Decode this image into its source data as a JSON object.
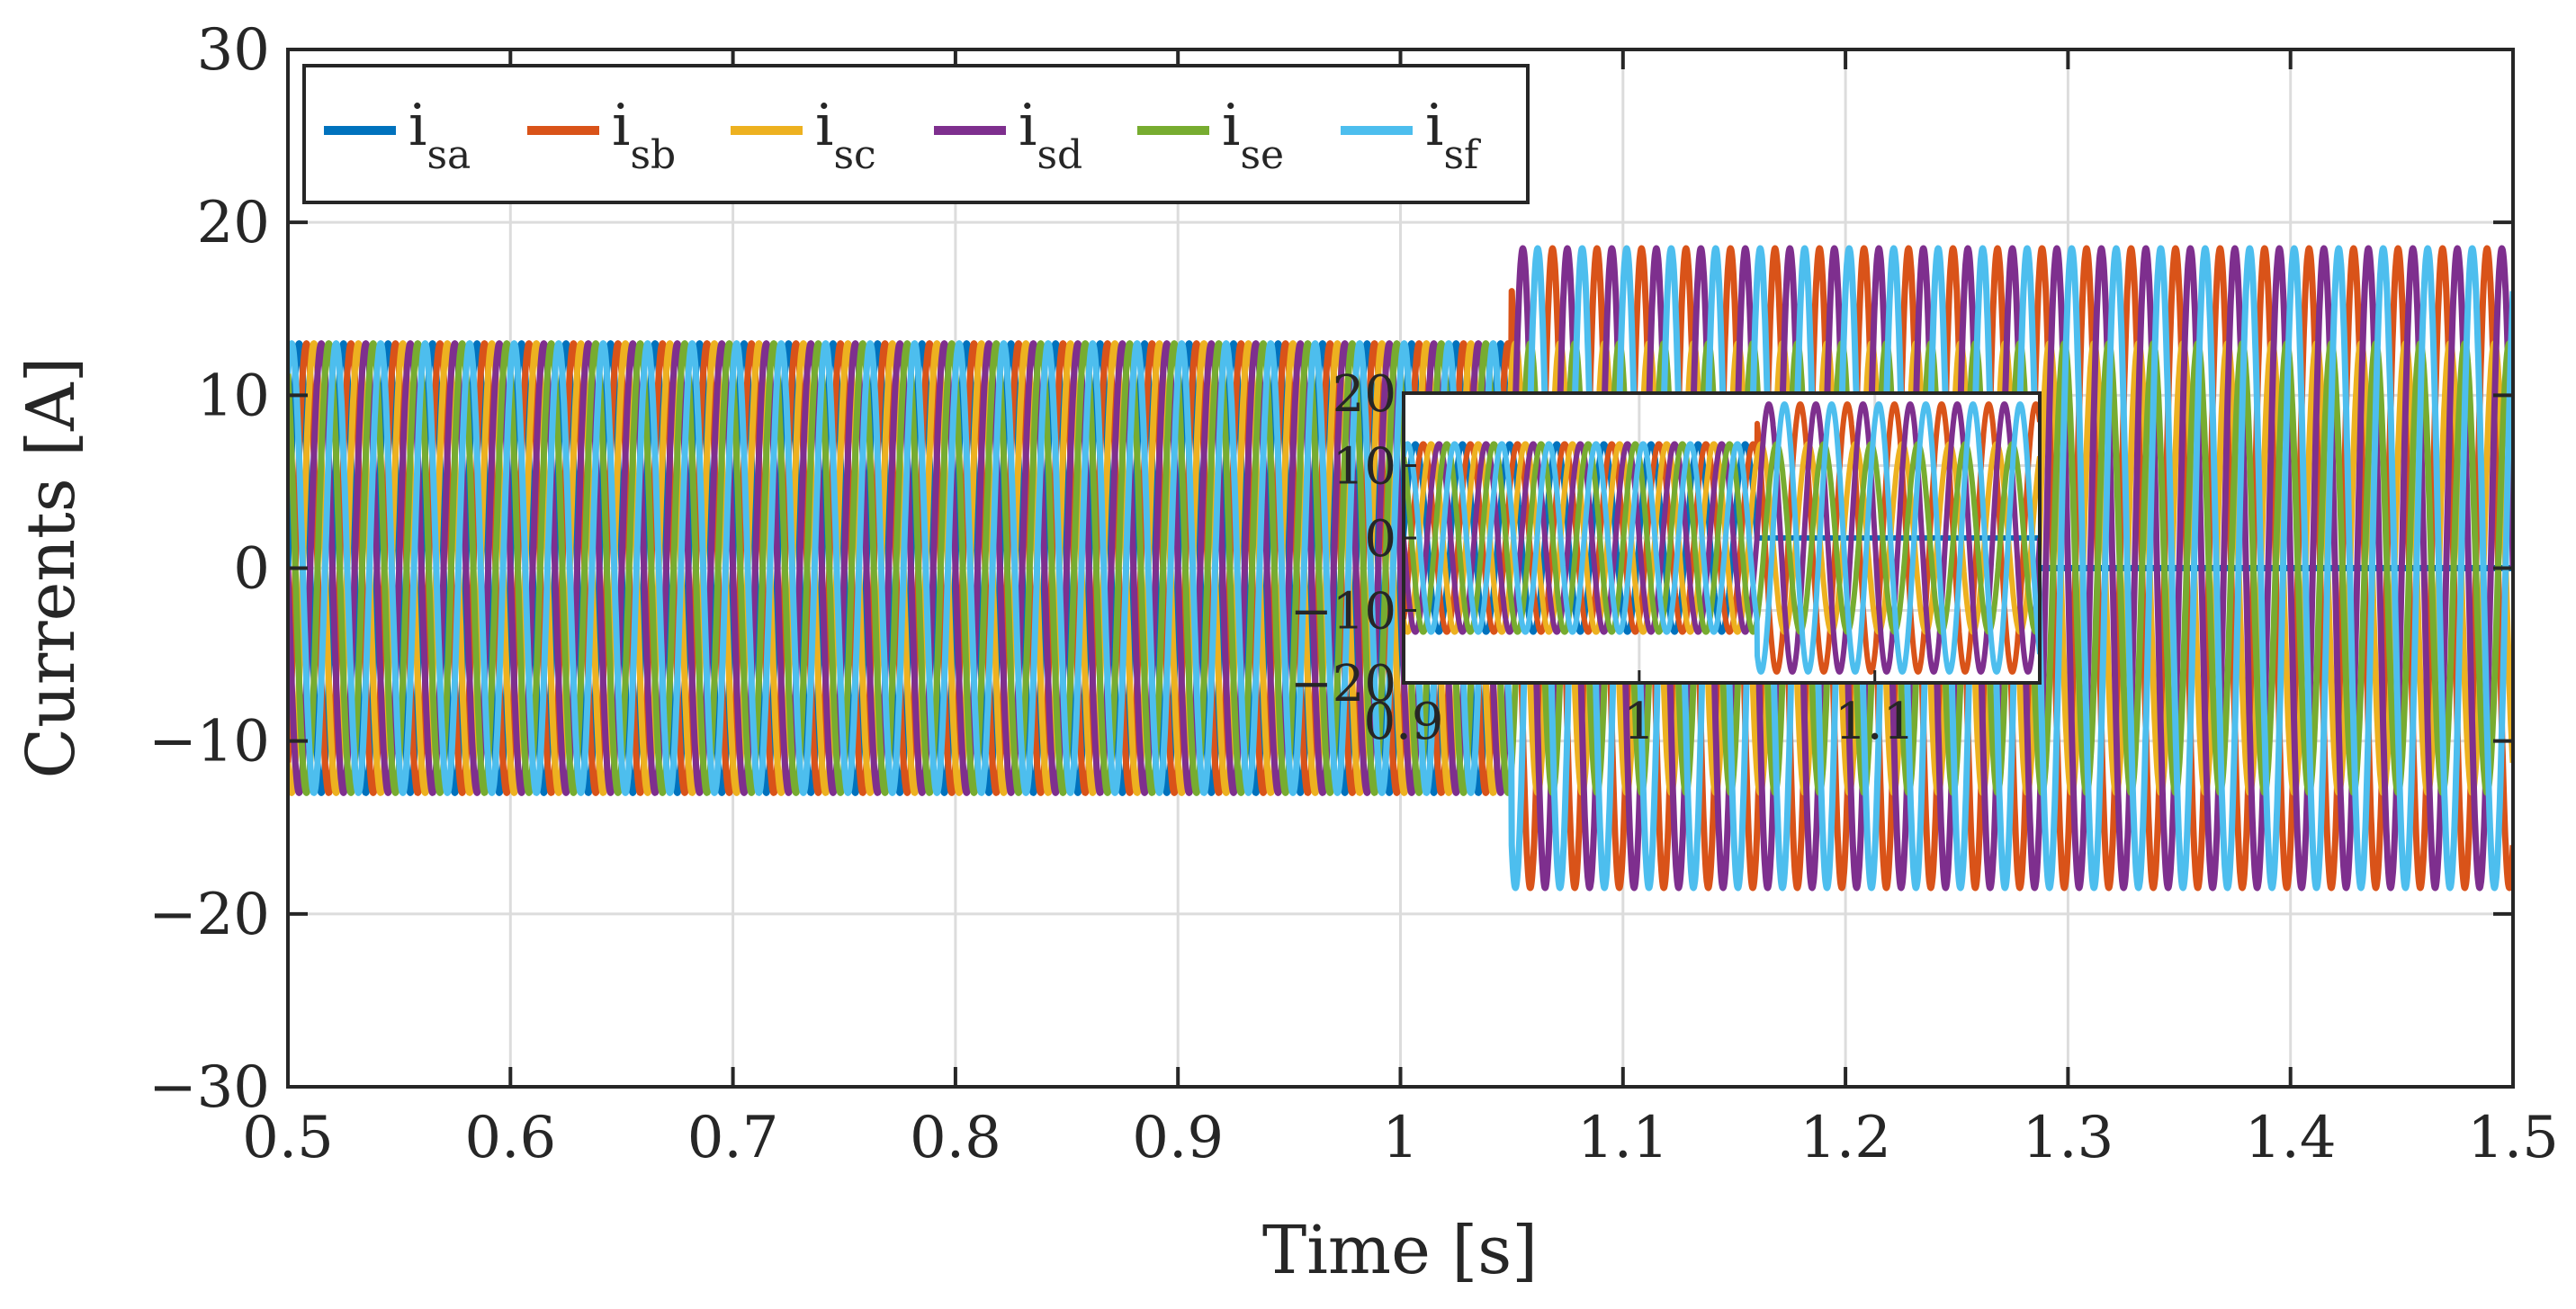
{
  "chart_data": {
    "type": "line",
    "title": "",
    "xlabel": "Time [s]",
    "ylabel": "Currents [A]",
    "xlim": [
      0.5,
      1.5
    ],
    "ylim": [
      -30,
      30
    ],
    "xticks": [
      0.5,
      0.6,
      0.7,
      0.8,
      0.9,
      1.0,
      1.1,
      1.2,
      1.3,
      1.4,
      1.5
    ],
    "xtick_labels": [
      "0.5",
      "0.6",
      "0.7",
      "0.8",
      "0.9",
      "1",
      "1.1",
      "1.2",
      "1.3",
      "1.4",
      "1.5"
    ],
    "yticks": [
      -30,
      -20,
      -10,
      0,
      10,
      20,
      30
    ],
    "ytick_labels": [
      "−30",
      "−20",
      "−10",
      "0",
      "10",
      "20",
      "30"
    ],
    "grid": true,
    "legend_position": "top-left",
    "frequency_hz": 50,
    "fault_time_s": 1.05,
    "series": [
      {
        "name": "i",
        "subscript": "sa",
        "color": "#0072BD",
        "amplitude_before": 13,
        "amplitude_after": 0,
        "phase_deg": 0
      },
      {
        "name": "i",
        "subscript": "sb",
        "color": "#D95319",
        "amplitude_before": 13,
        "amplitude_after": 18.5,
        "phase_deg": -60
      },
      {
        "name": "i",
        "subscript": "sc",
        "color": "#EDB120",
        "amplitude_before": 13,
        "amplitude_after": 13,
        "phase_deg": -120
      },
      {
        "name": "i",
        "subscript": "sd",
        "color": "#7E2F8E",
        "amplitude_before": 13,
        "amplitude_after": 18.5,
        "phase_deg": -180
      },
      {
        "name": "i",
        "subscript": "se",
        "color": "#77AC30",
        "amplitude_before": 13,
        "amplitude_after": 13,
        "phase_deg": -240
      },
      {
        "name": "i",
        "subscript": "sf",
        "color": "#4DBEEE",
        "amplitude_before": 13,
        "amplitude_after": 18.5,
        "phase_deg": -300
      }
    ],
    "inset": {
      "xlim": [
        0.9,
        1.17
      ],
      "ylim": [
        -20,
        20
      ],
      "xticks": [
        0.9,
        1.0,
        1.1
      ],
      "xtick_labels": [
        "0.9",
        "1",
        "1.1"
      ],
      "yticks": [
        -20,
        -10,
        0,
        10,
        20
      ],
      "ytick_labels": [
        "−20",
        "−10",
        "0",
        "10",
        "20"
      ],
      "fault_time_s": 1.05
    }
  }
}
